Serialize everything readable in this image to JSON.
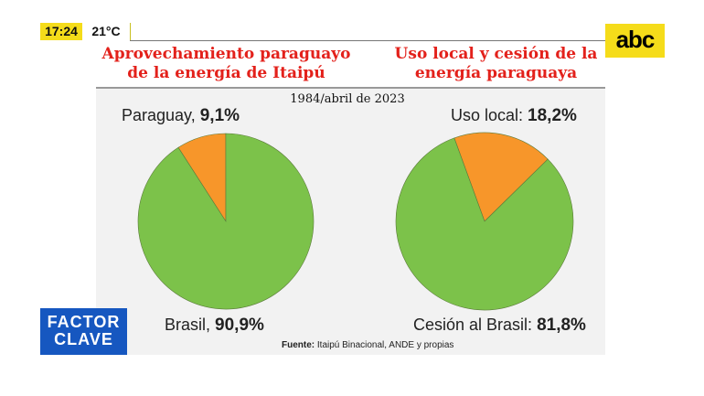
{
  "status": {
    "time": "17:24",
    "temperature": "21°C"
  },
  "logo": {
    "text": "abc"
  },
  "program": {
    "line1": "FACTOR",
    "line2": "CLAVE"
  },
  "period": "1984/abril de 2023",
  "source": {
    "label": "Fuente:",
    "text": " Itaipú Binacional, ANDE y propias"
  },
  "colors": {
    "green": "#7cc24a",
    "orange": "#f7962a",
    "title": "#e3211b"
  },
  "chart_data": [
    {
      "type": "pie",
      "title": "Aprovechamiento paraguayo de la energía de Itaipú",
      "title_lines": [
        "Aprovechamiento paraguayo",
        "de la energía de Itaipú"
      ],
      "slices": [
        {
          "label": "Paraguay,",
          "value_text": "9,1%",
          "value": 9.1,
          "color": "#f7962a"
        },
        {
          "label": "Brasil,",
          "value_text": "90,9%",
          "value": 90.9,
          "color": "#7cc24a"
        }
      ]
    },
    {
      "type": "pie",
      "title": "Uso local y cesión de la energía paraguaya",
      "title_lines": [
        "Uso local y cesión de la",
        "energía paraguaya"
      ],
      "slices": [
        {
          "label": "Uso local:",
          "value_text": "18,2%",
          "value": 18.2,
          "color": "#f7962a"
        },
        {
          "label": "Cesión al Brasil:",
          "value_text": "81,8%",
          "value": 81.8,
          "color": "#7cc24a"
        }
      ]
    }
  ]
}
